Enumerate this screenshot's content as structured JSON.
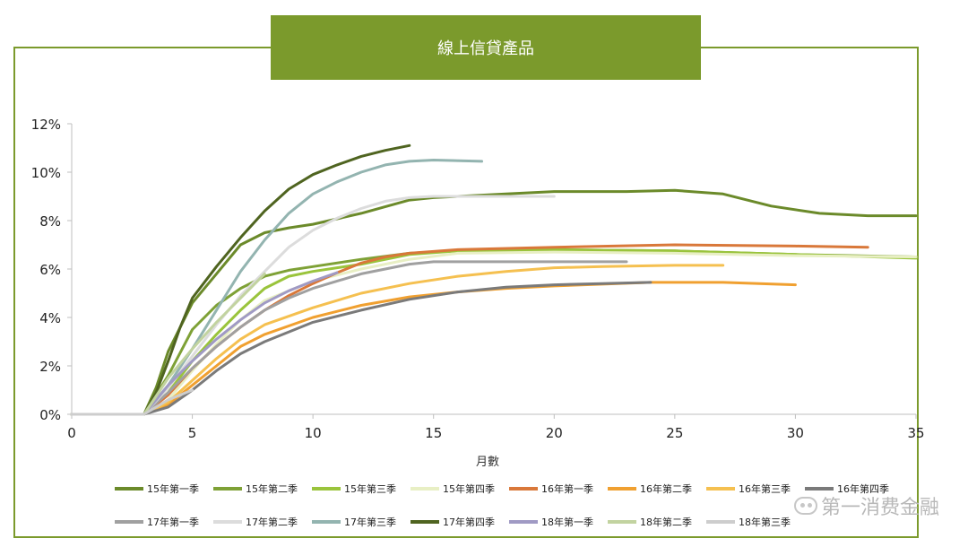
{
  "header": {
    "title": "線上信貸產品"
  },
  "watermark": {
    "text": "第一消费金融",
    "icon": "wechat-icon"
  },
  "chart_data": {
    "type": "line",
    "xlabel": "月數",
    "ylabel": "",
    "xlim": [
      0,
      35
    ],
    "ylim": [
      0,
      12
    ],
    "x_ticks": [
      "0",
      "5",
      "10",
      "15",
      "20",
      "25",
      "30",
      "35"
    ],
    "y_ticks": [
      "0%",
      "2%",
      "4%",
      "6%",
      "8%",
      "10%",
      "12%"
    ],
    "grid": false,
    "legend_position": "bottom",
    "series": [
      {
        "name": "15年第一季",
        "color": "#6b8a2a",
        "points": [
          [
            0,
            0
          ],
          [
            3,
            0
          ],
          [
            3.5,
            1.1
          ],
          [
            4,
            2.6
          ],
          [
            5,
            4.6
          ],
          [
            6,
            5.8
          ],
          [
            7,
            7.0
          ],
          [
            8,
            7.5
          ],
          [
            9,
            7.7
          ],
          [
            10,
            7.85
          ],
          [
            12,
            8.3
          ],
          [
            14,
            8.85
          ],
          [
            15,
            8.95
          ],
          [
            18,
            9.1
          ],
          [
            20,
            9.2
          ],
          [
            23,
            9.2
          ],
          [
            25,
            9.25
          ],
          [
            27,
            9.1
          ],
          [
            29,
            8.6
          ],
          [
            31,
            8.3
          ],
          [
            33,
            8.2
          ],
          [
            35,
            8.2
          ]
        ]
      },
      {
        "name": "15年第二季",
        "color": "#7ea136",
        "points": [
          [
            0,
            0
          ],
          [
            3,
            0
          ],
          [
            4,
            1.6
          ],
          [
            5,
            3.5
          ],
          [
            6,
            4.5
          ],
          [
            7,
            5.2
          ],
          [
            8,
            5.7
          ],
          [
            9,
            5.95
          ],
          [
            10,
            6.1
          ],
          [
            12,
            6.4
          ],
          [
            14,
            6.65
          ],
          [
            16,
            6.75
          ],
          [
            20,
            6.8
          ],
          [
            25,
            6.75
          ],
          [
            30,
            6.6
          ],
          [
            35,
            6.5
          ]
        ]
      },
      {
        "name": "15年第三季",
        "color": "#9ac43c",
        "points": [
          [
            0,
            0
          ],
          [
            3,
            0
          ],
          [
            4,
            0.9
          ],
          [
            5,
            2.2
          ],
          [
            6,
            3.3
          ],
          [
            7,
            4.3
          ],
          [
            8,
            5.2
          ],
          [
            9,
            5.7
          ],
          [
            10,
            5.9
          ],
          [
            11,
            6.05
          ],
          [
            12,
            6.2
          ],
          [
            14,
            6.6
          ],
          [
            16,
            6.75
          ],
          [
            20,
            6.8
          ],
          [
            25,
            6.75
          ],
          [
            30,
            6.6
          ],
          [
            35,
            6.45
          ]
        ]
      },
      {
        "name": "15年第四季",
        "color": "#e8efc4",
        "points": [
          [
            0,
            0
          ],
          [
            3,
            0
          ],
          [
            4,
            0.6
          ],
          [
            5,
            1.8
          ],
          [
            6,
            2.9
          ],
          [
            7,
            3.9
          ],
          [
            8,
            4.7
          ],
          [
            10,
            5.5
          ],
          [
            12,
            6.0
          ],
          [
            14,
            6.4
          ],
          [
            16,
            6.65
          ],
          [
            20,
            6.7
          ],
          [
            25,
            6.65
          ],
          [
            30,
            6.55
          ],
          [
            35,
            6.5
          ]
        ]
      },
      {
        "name": "16年第一季",
        "color": "#d9783a",
        "points": [
          [
            0,
            0
          ],
          [
            3,
            0
          ],
          [
            4,
            0.8
          ],
          [
            5,
            1.9
          ],
          [
            6,
            2.8
          ],
          [
            7,
            3.6
          ],
          [
            8,
            4.3
          ],
          [
            9,
            4.9
          ],
          [
            10,
            5.4
          ],
          [
            11,
            5.85
          ],
          [
            12,
            6.25
          ],
          [
            13,
            6.5
          ],
          [
            14,
            6.65
          ],
          [
            16,
            6.8
          ],
          [
            20,
            6.9
          ],
          [
            25,
            7.0
          ],
          [
            30,
            6.95
          ],
          [
            33,
            6.9
          ]
        ]
      },
      {
        "name": "16年第二季",
        "color": "#f0a030",
        "points": [
          [
            0,
            0
          ],
          [
            3,
            0
          ],
          [
            4,
            0.4
          ],
          [
            5,
            1.2
          ],
          [
            6,
            2.0
          ],
          [
            7,
            2.8
          ],
          [
            8,
            3.3
          ],
          [
            10,
            4.0
          ],
          [
            12,
            4.5
          ],
          [
            14,
            4.85
          ],
          [
            16,
            5.05
          ],
          [
            18,
            5.2
          ],
          [
            20,
            5.3
          ],
          [
            24,
            5.45
          ],
          [
            27,
            5.45
          ],
          [
            30,
            5.35
          ]
        ]
      },
      {
        "name": "16年第三季",
        "color": "#f5c050",
        "points": [
          [
            0,
            0
          ],
          [
            3,
            0
          ],
          [
            4,
            0.5
          ],
          [
            5,
            1.4
          ],
          [
            6,
            2.3
          ],
          [
            7,
            3.1
          ],
          [
            8,
            3.7
          ],
          [
            10,
            4.4
          ],
          [
            12,
            5.0
          ],
          [
            14,
            5.4
          ],
          [
            16,
            5.7
          ],
          [
            18,
            5.9
          ],
          [
            20,
            6.05
          ],
          [
            22,
            6.1
          ],
          [
            25,
            6.15
          ],
          [
            27,
            6.15
          ]
        ]
      },
      {
        "name": "16年第四季",
        "color": "#7a7a7a",
        "points": [
          [
            0,
            0
          ],
          [
            3,
            0
          ],
          [
            4,
            0.3
          ],
          [
            5,
            1.0
          ],
          [
            6,
            1.8
          ],
          [
            7,
            2.5
          ],
          [
            8,
            3.0
          ],
          [
            10,
            3.8
          ],
          [
            12,
            4.3
          ],
          [
            14,
            4.75
          ],
          [
            16,
            5.05
          ],
          [
            18,
            5.25
          ],
          [
            20,
            5.35
          ],
          [
            22,
            5.4
          ],
          [
            24,
            5.45
          ]
        ]
      },
      {
        "name": "17年第一季",
        "color": "#a0a0a0",
        "points": [
          [
            0,
            0
          ],
          [
            3,
            0
          ],
          [
            4,
            0.9
          ],
          [
            5,
            1.9
          ],
          [
            6,
            2.8
          ],
          [
            7,
            3.6
          ],
          [
            8,
            4.3
          ],
          [
            9,
            4.8
          ],
          [
            10,
            5.2
          ],
          [
            12,
            5.8
          ],
          [
            14,
            6.2
          ],
          [
            15,
            6.3
          ],
          [
            18,
            6.3
          ],
          [
            20,
            6.3
          ],
          [
            23,
            6.3
          ]
        ]
      },
      {
        "name": "17年第二季",
        "color": "#dcdcdc",
        "points": [
          [
            0,
            0
          ],
          [
            3,
            0
          ],
          [
            4,
            1.1
          ],
          [
            5,
            2.4
          ],
          [
            6,
            3.7
          ],
          [
            7,
            4.9
          ],
          [
            8,
            5.9
          ],
          [
            9,
            6.9
          ],
          [
            10,
            7.6
          ],
          [
            11,
            8.1
          ],
          [
            12,
            8.5
          ],
          [
            13,
            8.8
          ],
          [
            14,
            8.95
          ],
          [
            15,
            9.0
          ],
          [
            17,
            9.0
          ],
          [
            20,
            9.0
          ]
        ]
      },
      {
        "name": "17年第三季",
        "color": "#93b4b0",
        "points": [
          [
            0,
            0
          ],
          [
            3,
            0
          ],
          [
            4,
            1.2
          ],
          [
            5,
            2.7
          ],
          [
            6,
            4.3
          ],
          [
            7,
            5.9
          ],
          [
            8,
            7.2
          ],
          [
            9,
            8.3
          ],
          [
            10,
            9.1
          ],
          [
            11,
            9.6
          ],
          [
            12,
            10.0
          ],
          [
            13,
            10.3
          ],
          [
            14,
            10.45
          ],
          [
            15,
            10.5
          ],
          [
            17,
            10.45
          ]
        ]
      },
      {
        "name": "17年第四季",
        "color": "#4f6420",
        "points": [
          [
            0,
            0
          ],
          [
            3,
            0
          ],
          [
            3.5,
            0.9
          ],
          [
            4,
            2.2
          ],
          [
            4.5,
            3.6
          ],
          [
            5,
            4.8
          ],
          [
            6,
            6.1
          ],
          [
            7,
            7.3
          ],
          [
            8,
            8.4
          ],
          [
            9,
            9.3
          ],
          [
            10,
            9.9
          ],
          [
            11,
            10.3
          ],
          [
            12,
            10.65
          ],
          [
            13,
            10.9
          ],
          [
            14,
            11.1
          ]
        ]
      },
      {
        "name": "18年第一季",
        "color": "#a09ac4",
        "points": [
          [
            0,
            0
          ],
          [
            3,
            0
          ],
          [
            4,
            1.2
          ],
          [
            5,
            2.2
          ],
          [
            6,
            3.1
          ],
          [
            7,
            3.9
          ],
          [
            8,
            4.6
          ],
          [
            9,
            5.1
          ],
          [
            10,
            5.5
          ],
          [
            11,
            5.85
          ]
        ]
      },
      {
        "name": "18年第二季",
        "color": "#c2d3a0",
        "points": [
          [
            0,
            0
          ],
          [
            3,
            0
          ],
          [
            4,
            1.5
          ],
          [
            5,
            2.7
          ],
          [
            6,
            3.8
          ],
          [
            7,
            4.8
          ],
          [
            8,
            5.8
          ]
        ]
      },
      {
        "name": "18年第三季",
        "color": "#cdcdcd",
        "points": [
          [
            0,
            0
          ],
          [
            3,
            0
          ],
          [
            3.5,
            0.3
          ],
          [
            4,
            0.6
          ],
          [
            5,
            1.0
          ]
        ]
      }
    ]
  }
}
